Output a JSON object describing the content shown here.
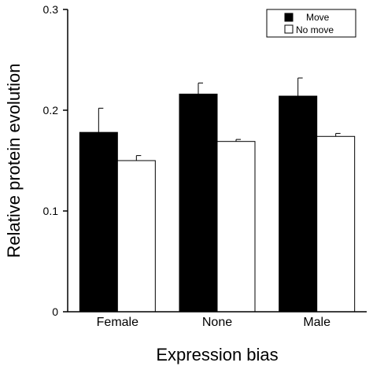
{
  "chart_data": {
    "type": "bar",
    "title": "",
    "xlabel": "Expression bias",
    "ylabel": "Relative protein evolution",
    "ylim": [
      0,
      0.3
    ],
    "yticks": [
      0,
      0.1,
      0.2,
      0.3
    ],
    "ytick_labels": [
      "0",
      "0.1",
      "0.2",
      "0.3"
    ],
    "categories": [
      "Female",
      "None",
      "Male"
    ],
    "series": [
      {
        "name": "Move",
        "color": "#000000",
        "values": [
          0.178,
          0.216,
          0.214
        ],
        "errors": [
          0.024,
          0.011,
          0.018
        ]
      },
      {
        "name": "No move",
        "color": "#ffffff",
        "values": [
          0.15,
          0.169,
          0.174
        ],
        "errors": [
          0.005,
          0.002,
          0.003
        ]
      }
    ],
    "legend_position": "top-right",
    "grid": false
  }
}
